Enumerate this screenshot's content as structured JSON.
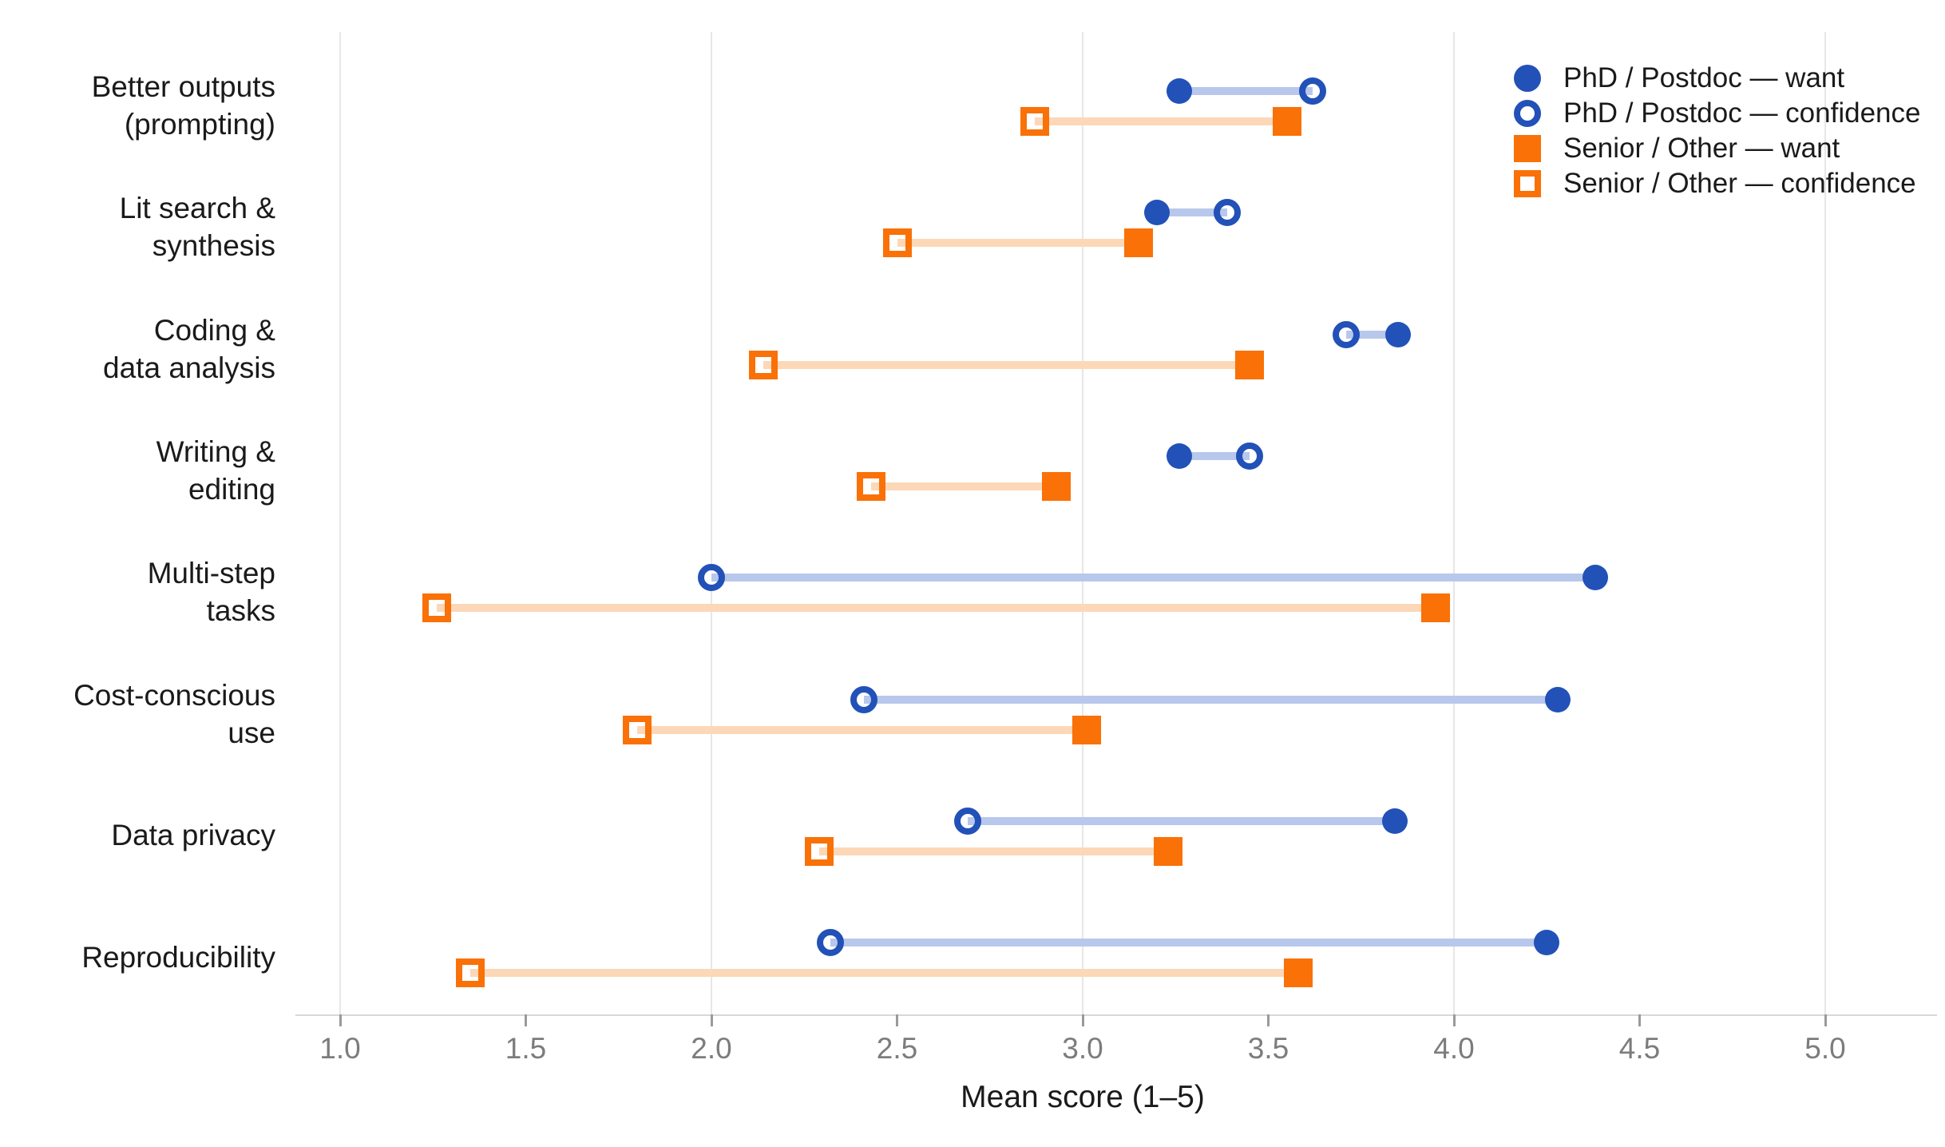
{
  "chart_data": {
    "type": "dumbbell",
    "title": "",
    "xlabel": "Mean score (1–5)",
    "xlim": [
      1.0,
      5.0
    ],
    "grid": "vertical lines at integer values only",
    "legend_position": "top-right",
    "colors": {
      "phd": "#2251b8",
      "phd_connector": "#b8c7ec",
      "senior": "#f97107",
      "senior_connector": "#fcd8b8",
      "gridline": "#e7e7e7",
      "axis_line": "#d8d8d8",
      "tick": "#9a9a9a",
      "tick_label": "#7c7c7c",
      "text": "#1a1a1a"
    },
    "gridlines": [
      1.0,
      2.0,
      3.0,
      4.0,
      5.0
    ],
    "ticks": [
      {
        "value": 1.0,
        "label": "1.0"
      },
      {
        "value": 1.5,
        "label": "1.5"
      },
      {
        "value": 2.0,
        "label": "2.0"
      },
      {
        "value": 2.5,
        "label": "2.5"
      },
      {
        "value": 3.0,
        "label": "3.0"
      },
      {
        "value": 3.5,
        "label": "3.5"
      },
      {
        "value": 4.0,
        "label": "4.0"
      },
      {
        "value": 4.5,
        "label": "4.5"
      },
      {
        "value": 5.0,
        "label": "5.0"
      }
    ],
    "rows": [
      {
        "label_lines": [
          "Better outputs",
          "(prompting)"
        ],
        "phd_want": 3.26,
        "phd_confidence": 3.62,
        "senior_want": 3.55,
        "senior_confidence": 2.87
      },
      {
        "label_lines": [
          "Lit search &",
          "synthesis"
        ],
        "phd_want": 3.2,
        "phd_confidence": 3.39,
        "senior_want": 3.15,
        "senior_confidence": 2.5
      },
      {
        "label_lines": [
          "Coding &",
          "data analysis"
        ],
        "phd_want": 3.85,
        "phd_confidence": 3.71,
        "senior_want": 3.45,
        "senior_confidence": 2.14
      },
      {
        "label_lines": [
          "Writing &",
          "editing"
        ],
        "phd_want": 3.26,
        "phd_confidence": 3.45,
        "senior_want": 2.93,
        "senior_confidence": 2.43
      },
      {
        "label_lines": [
          "Multi-step",
          "tasks"
        ],
        "phd_want": 4.38,
        "phd_confidence": 2.0,
        "senior_want": 3.95,
        "senior_confidence": 1.26
      },
      {
        "label_lines": [
          "Cost-conscious",
          "use"
        ],
        "phd_want": 4.28,
        "phd_confidence": 2.41,
        "senior_want": 3.01,
        "senior_confidence": 1.8
      },
      {
        "label_lines": [
          "Data privacy"
        ],
        "phd_want": 3.84,
        "phd_confidence": 2.69,
        "senior_want": 3.23,
        "senior_confidence": 2.29
      },
      {
        "label_lines": [
          "Reproducibility"
        ],
        "phd_want": 4.25,
        "phd_confidence": 2.32,
        "senior_want": 3.58,
        "senior_confidence": 1.35
      }
    ]
  },
  "legend": {
    "items": [
      {
        "label": "PhD / Postdoc — want",
        "marker": "circle-filled",
        "color": "#2251b8"
      },
      {
        "label": "PhD / Postdoc — confidence",
        "marker": "circle-open",
        "color": "#2251b8"
      },
      {
        "label": "Senior / Other — want",
        "marker": "square-filled",
        "color": "#f97107"
      },
      {
        "label": "Senior / Other — confidence",
        "marker": "square-open",
        "color": "#f97107"
      }
    ]
  }
}
